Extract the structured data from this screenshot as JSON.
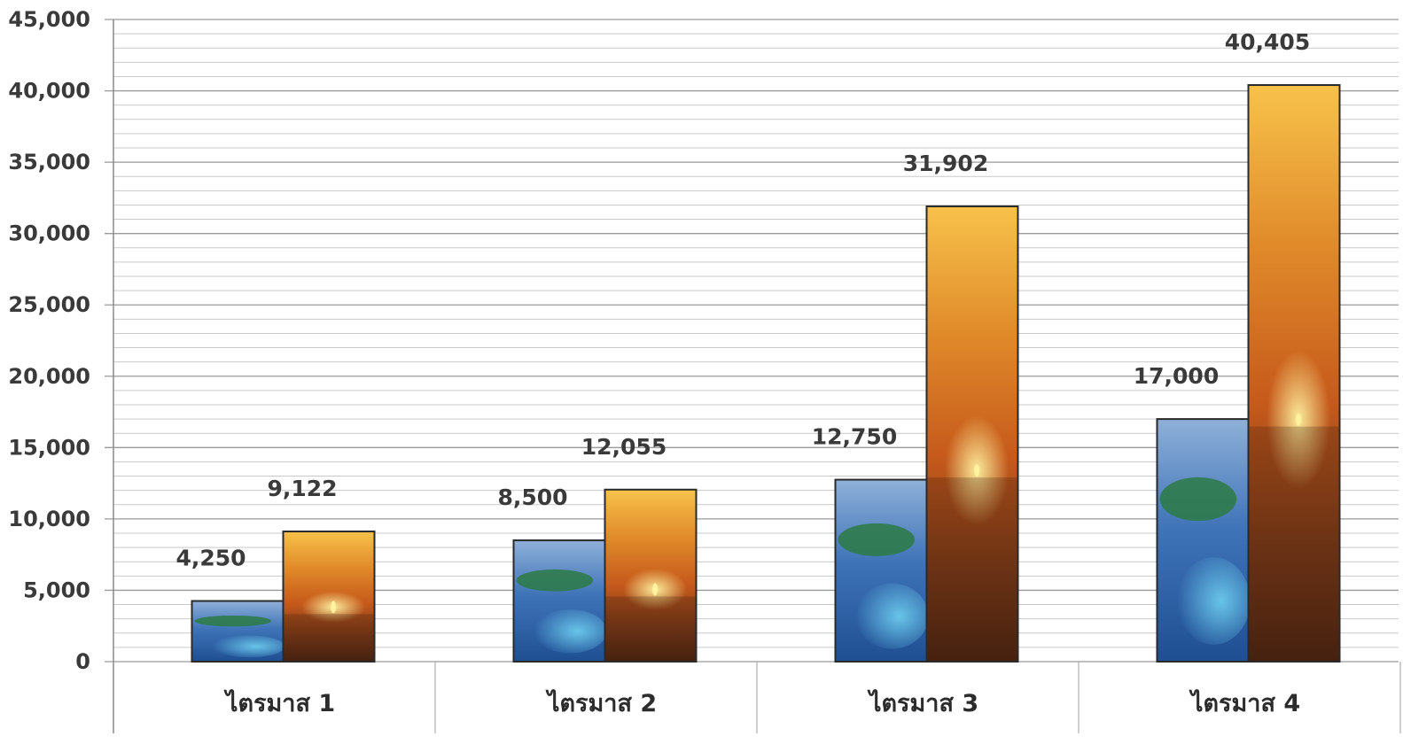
{
  "chart_data": {
    "type": "bar",
    "title": "",
    "xlabel": "",
    "ylabel": "",
    "ylim": [
      0,
      45000
    ],
    "yticks": [
      0,
      5000,
      10000,
      15000,
      20000,
      25000,
      30000,
      35000,
      40000,
      45000
    ],
    "ytick_labels": [
      "0",
      "5,000",
      "10,000",
      "15,000",
      "20,000",
      "25,000",
      "30,000",
      "35,000",
      "40,000",
      "45,000"
    ],
    "grid": true,
    "legend": "none",
    "categories": [
      "ไตรมาส 1",
      "ไตรมาส 2",
      "ไตรมาส 3",
      "ไตรมาส 4"
    ],
    "series": [
      {
        "values": [
          4250,
          8500,
          12750,
          17000
        ],
        "labels": [
          "4,250",
          "8,500",
          "12,750",
          "17,000"
        ],
        "fill": "photo-blue-water",
        "colors": {
          "top": "#8fb0d8",
          "mid": "#3f74b8",
          "bottom": "#1f4f93",
          "island": "#2d7a45",
          "foam": "#6fd0f0"
        }
      },
      {
        "values": [
          9122,
          12055,
          31902,
          40405
        ],
        "labels": [
          "9,122",
          "12,055",
          "31,902",
          "40,405"
        ],
        "fill": "photo-sunset",
        "colors": {
          "top": "#f7c24a",
          "mid": "#c65a1c",
          "bottom": "#4a2412",
          "sun": "#fff3a0"
        }
      }
    ],
    "colors": {
      "grid": "#c9c9c9",
      "axis": "#8a8a8a",
      "bar_border": "#2a2a2a"
    }
  }
}
